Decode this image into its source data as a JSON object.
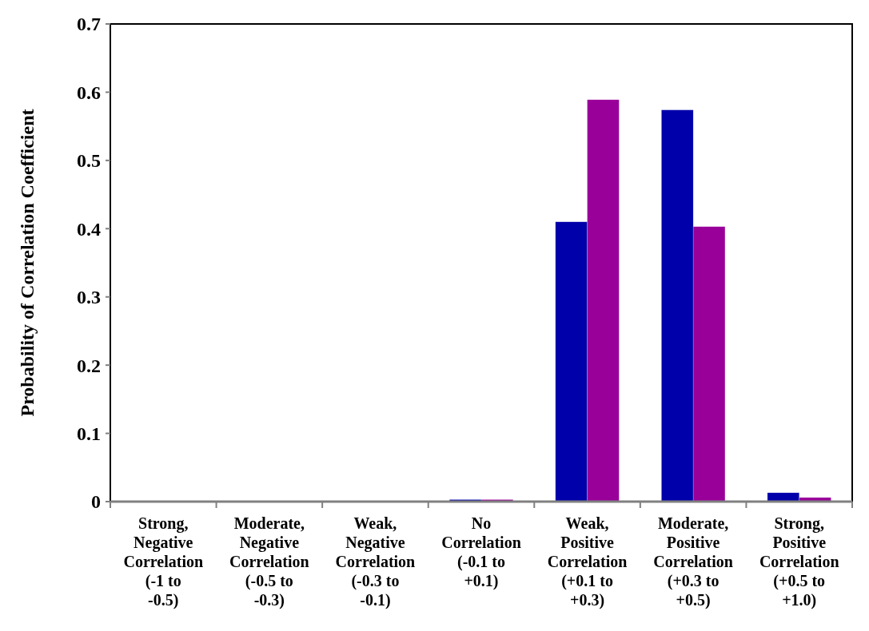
{
  "chart_data": {
    "type": "bar",
    "ylabel": "Probability of Correlation Coefficient",
    "categories": [
      "Strong, Negative Correlation (-1 to -0.5)",
      "Moderate, Negative Correlation (-0.5 to -0.3)",
      "Weak, Negative Correlation (-0.3 to -0.1)",
      "No Correlation (-0.1 to +0.1)",
      "Weak, Positive Correlation (+0.1 to +0.3)",
      "Moderate, Positive Correlation (+0.3 to +0.5)",
      "Strong, Positive Correlation (+0.5 to +1.0)"
    ],
    "series": [
      {
        "color": "#0000aa",
        "values": [
          0,
          0,
          0,
          0.003,
          0.41,
          0.574,
          0.013
        ]
      },
      {
        "color": "#990099",
        "values": [
          0,
          0,
          0,
          0.003,
          0.589,
          0.403,
          0.006
        ]
      }
    ],
    "ylim": [
      0,
      0.7
    ],
    "yticks": [
      {
        "value": 0,
        "label": "0"
      },
      0.1,
      0.2,
      0.3,
      0.4,
      0.5,
      0.6,
      0.7
    ],
    "grid": false
  }
}
